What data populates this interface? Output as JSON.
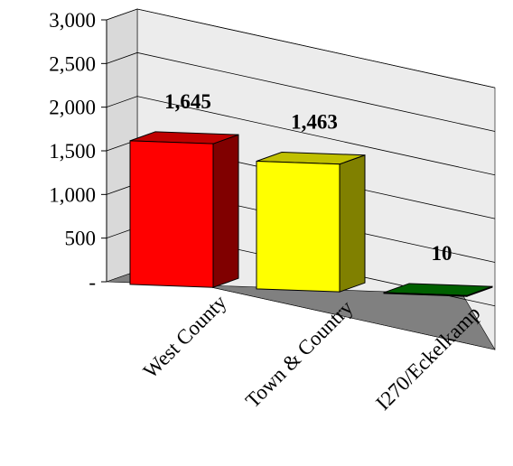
{
  "chart_data": {
    "type": "bar",
    "style": "3d",
    "categories": [
      "West County",
      "Town & Country",
      "I270/Eckelkamp"
    ],
    "values": [
      1645,
      1463,
      10
    ],
    "data_labels": [
      "1,645",
      "1,463",
      "10"
    ],
    "ylim": [
      0,
      3000
    ],
    "yticks": [
      0,
      500,
      1000,
      1500,
      2000,
      2500,
      3000
    ],
    "ytick_labels": [
      "-",
      "500",
      "1,000",
      "1,500",
      "2,000",
      "2,500",
      "3,000"
    ],
    "grid": true,
    "legend": "none",
    "colors": {
      "bars": [
        {
          "front": "#ff0000",
          "side": "#800000",
          "top": "#c00000"
        },
        {
          "front": "#ffff00",
          "side": "#808000",
          "top": "#c0c000"
        },
        {
          "front": "#008000",
          "side": "#004000",
          "top": "#006000"
        }
      ],
      "wall": "#ececec",
      "floor": "#808080",
      "gridline": "#000000"
    }
  }
}
